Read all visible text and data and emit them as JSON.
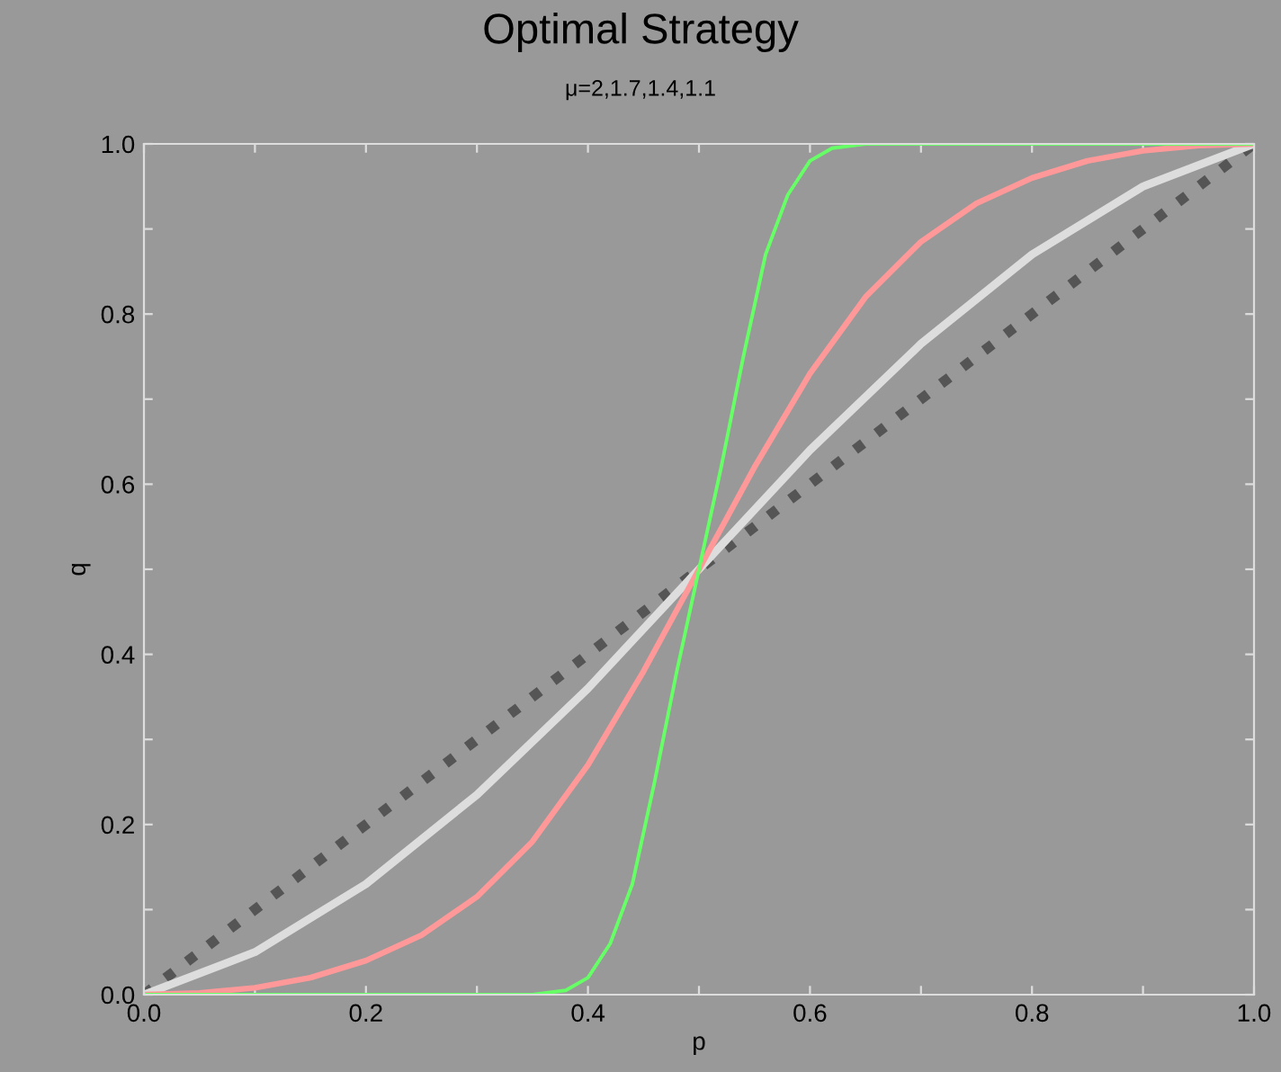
{
  "chart_data": {
    "type": "line",
    "title": "Optimal Strategy",
    "subtitle": "μ=2,1.7,1.4,1.1",
    "xlabel": "p",
    "ylabel": "q",
    "xlim": [
      0,
      1
    ],
    "ylim": [
      0,
      1
    ],
    "xticks": [
      {
        "value": 0,
        "label": "0.0"
      },
      {
        "value": 0.1,
        "label": null
      },
      {
        "value": 0.2,
        "label": "0.2"
      },
      {
        "value": 0.3,
        "label": null
      },
      {
        "value": 0.4,
        "label": "0.4"
      },
      {
        "value": 0.5,
        "label": null
      },
      {
        "value": 0.6,
        "label": "0.6"
      },
      {
        "value": 0.7,
        "label": null
      },
      {
        "value": 0.8,
        "label": "0.8"
      },
      {
        "value": 0.9,
        "label": null
      },
      {
        "value": 1,
        "label": "1.0"
      }
    ],
    "yticks": [
      {
        "value": 0,
        "label": "0.0"
      },
      {
        "value": 0.1,
        "label": null
      },
      {
        "value": 0.2,
        "label": "0.2"
      },
      {
        "value": 0.3,
        "label": null
      },
      {
        "value": 0.4,
        "label": "0.4"
      },
      {
        "value": 0.5,
        "label": null
      },
      {
        "value": 0.6,
        "label": "0.6"
      },
      {
        "value": 0.7,
        "label": null
      },
      {
        "value": 0.8,
        "label": "0.8"
      },
      {
        "value": 0.9,
        "label": null
      },
      {
        "value": 1,
        "label": "1.0"
      }
    ],
    "grid": false,
    "legend": false,
    "marker": "none",
    "series": [
      {
        "color": "#555555",
        "line_style": "dotted",
        "x": [
          0,
          0.5,
          1
        ],
        "values": [
          0,
          0.5,
          1
        ]
      },
      {
        "color": "#dddddd",
        "line_style": "solid",
        "x": [
          0,
          0.1,
          0.2,
          0.3,
          0.4,
          0.5,
          0.6,
          0.7,
          0.8,
          0.9,
          1
        ],
        "values": [
          0,
          0.05,
          0.13,
          0.235,
          0.36,
          0.5,
          0.64,
          0.765,
          0.87,
          0.95,
          1
        ]
      },
      {
        "color": "#ff9999",
        "line_style": "solid",
        "x": [
          0,
          0.05,
          0.1,
          0.15,
          0.2,
          0.25,
          0.3,
          0.35,
          0.4,
          0.45,
          0.5,
          0.55,
          0.6,
          0.65,
          0.7,
          0.75,
          0.8,
          0.85,
          0.9,
          0.95,
          1
        ],
        "values": [
          0,
          0.002,
          0.008,
          0.02,
          0.04,
          0.07,
          0.115,
          0.18,
          0.27,
          0.38,
          0.5,
          0.62,
          0.73,
          0.82,
          0.885,
          0.93,
          0.96,
          0.98,
          0.992,
          0.998,
          1
        ]
      },
      {
        "color": "#66ff66",
        "line_style": "solid",
        "x": [
          0,
          0.35,
          0.38,
          0.4,
          0.42,
          0.44,
          0.46,
          0.48,
          0.5,
          0.52,
          0.54,
          0.56,
          0.58,
          0.6,
          0.62,
          0.65,
          1
        ],
        "values": [
          0,
          0,
          0.005,
          0.02,
          0.06,
          0.13,
          0.25,
          0.38,
          0.5,
          0.62,
          0.75,
          0.87,
          0.94,
          0.98,
          0.995,
          1,
          1
        ]
      }
    ]
  }
}
